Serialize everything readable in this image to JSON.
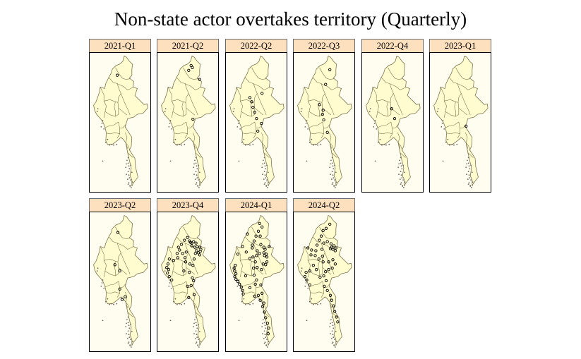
{
  "title": "Non-state actor overtakes territory (Quarterly)",
  "colors": {
    "strip_fill": "#fde0bd",
    "map_fill": "#fffccf",
    "map_border": "#7f7650",
    "islands": "#6f6a60",
    "points": "#000000"
  },
  "panels": [
    {
      "label": "2021-Q1",
      "points": [
        [
          96.2,
          25.8
        ]
      ]
    },
    {
      "label": "2021-Q2",
      "points": [
        [
          97.2,
          27.2
        ],
        [
          97.4,
          26.9
        ],
        [
          96.8,
          26.5
        ],
        [
          98.6,
          25.2
        ],
        [
          97.5,
          19.5
        ]
      ]
    },
    {
      "label": "2022-Q2",
      "points": [
        [
          97.6,
          23.2
        ],
        [
          95.9,
          22.0
        ],
        [
          96.1,
          21.2
        ],
        [
          96.4,
          20.5
        ],
        [
          96.7,
          19.6
        ],
        [
          97.5,
          18.9
        ],
        [
          96.9,
          17.8
        ],
        [
          95.6,
          22.6
        ]
      ]
    },
    {
      "label": "2022-Q3",
      "points": [
        [
          97.6,
          26.6
        ],
        [
          96.9,
          24.5
        ],
        [
          96.5,
          20.8
        ],
        [
          96.4,
          20.2
        ],
        [
          96.6,
          19.4
        ],
        [
          97.2,
          17.6
        ],
        [
          95.9,
          21.6
        ]
      ]
    },
    {
      "label": "2022-Q4",
      "points": [
        [
          96.5,
          21.0
        ],
        [
          97.0,
          19.6
        ]
      ]
    },
    {
      "label": "2023-Q1",
      "points": [
        [
          97.6,
          18.5
        ]
      ]
    },
    {
      "label": "2023-Q2",
      "points": [
        [
          96.3,
          26.1
        ],
        [
          96.6,
          20.6
        ],
        [
          95.8,
          21.5
        ],
        [
          96.6,
          18.0
        ],
        [
          97.5,
          16.9
        ],
        [
          97.0,
          16.5
        ]
      ]
    },
    {
      "label": "2023-Q4",
      "points": [
        [
          96.9,
          24.9
        ],
        [
          97.1,
          24.7
        ],
        [
          97.3,
          24.6
        ],
        [
          97.6,
          24.8
        ],
        [
          98.0,
          24.6
        ],
        [
          97.3,
          24.2
        ],
        [
          97.8,
          24.0
        ],
        [
          98.2,
          24.1
        ],
        [
          98.6,
          24.0
        ],
        [
          98.8,
          23.7
        ],
        [
          98.7,
          23.4
        ],
        [
          98.4,
          23.2
        ],
        [
          98.1,
          23.5
        ],
        [
          97.9,
          23.1
        ],
        [
          98.6,
          22.9
        ],
        [
          96.6,
          25.4
        ],
        [
          96.1,
          25.0
        ],
        [
          95.6,
          24.4
        ],
        [
          95.1,
          24.0
        ],
        [
          95.3,
          23.6
        ],
        [
          94.9,
          23.1
        ],
        [
          95.0,
          22.5
        ],
        [
          94.3,
          22.1
        ],
        [
          93.6,
          22.3
        ],
        [
          93.4,
          21.6
        ],
        [
          93.2,
          21.1
        ],
        [
          93.5,
          20.8
        ],
        [
          93.3,
          20.3
        ],
        [
          93.6,
          19.8
        ],
        [
          94.0,
          19.3
        ],
        [
          96.4,
          23.3
        ],
        [
          95.8,
          23.1
        ],
        [
          96.2,
          22.5
        ],
        [
          97.7,
          22.3
        ],
        [
          96.3,
          21.9
        ],
        [
          97.0,
          21.6
        ],
        [
          97.5,
          21.4
        ],
        [
          96.9,
          20.4
        ],
        [
          96.0,
          20.6
        ],
        [
          97.4,
          19.6
        ],
        [
          97.6,
          19.2
        ],
        [
          97.2,
          18.5
        ],
        [
          96.6,
          18.4
        ],
        [
          97.7,
          17.2
        ],
        [
          96.8,
          16.8
        ]
      ]
    },
    {
      "label": "2024-Q1",
      "points": [
        [
          97.2,
          27.4
        ],
        [
          97.6,
          26.9
        ],
        [
          97.0,
          26.3
        ],
        [
          96.6,
          25.6
        ],
        [
          96.3,
          24.9
        ],
        [
          96.0,
          24.3
        ],
        [
          97.9,
          24.0
        ],
        [
          98.1,
          23.7
        ],
        [
          97.4,
          24.4
        ],
        [
          96.8,
          23.5
        ],
        [
          96.0,
          23.9
        ],
        [
          97.9,
          23.2
        ],
        [
          98.0,
          22.8
        ],
        [
          98.3,
          23.0
        ],
        [
          98.4,
          22.6
        ],
        [
          98.4,
          21.9
        ],
        [
          98.2,
          21.5
        ],
        [
          97.8,
          21.6
        ],
        [
          97.5,
          20.8
        ],
        [
          96.8,
          21.1
        ],
        [
          96.5,
          21.9
        ],
        [
          96.1,
          22.6
        ],
        [
          95.6,
          22.4
        ],
        [
          95.0,
          23.3
        ],
        [
          94.4,
          24.1
        ],
        [
          93.6,
          23.0
        ],
        [
          93.2,
          21.4
        ],
        [
          93.0,
          21.0
        ],
        [
          93.1,
          20.6
        ],
        [
          93.3,
          20.2
        ],
        [
          93.1,
          19.8
        ],
        [
          93.3,
          19.4
        ],
        [
          93.6,
          19.1
        ],
        [
          93.9,
          18.7
        ],
        [
          94.2,
          18.3
        ],
        [
          94.4,
          17.8
        ],
        [
          94.5,
          17.3
        ],
        [
          96.3,
          20.0
        ],
        [
          96.7,
          19.3
        ],
        [
          97.4,
          18.6
        ],
        [
          96.5,
          18.7
        ],
        [
          97.6,
          17.4
        ],
        [
          97.0,
          17.1
        ],
        [
          97.3,
          16.4
        ],
        [
          97.9,
          16.0
        ],
        [
          97.7,
          15.5
        ],
        [
          98.0,
          14.7
        ],
        [
          98.2,
          13.9
        ],
        [
          98.5,
          13.1
        ],
        [
          98.7,
          12.4
        ],
        [
          98.6,
          11.6
        ],
        [
          96.4,
          17.0
        ],
        [
          95.6,
          18.2
        ],
        [
          94.9,
          19.9
        ],
        [
          96.2,
          21.0
        ],
        [
          96.7,
          22.8
        ],
        [
          97.2,
          23.1
        ],
        [
          98.8,
          24.1
        ],
        [
          97.3,
          25.6
        ],
        [
          95.2,
          25.9
        ]
      ]
    },
    {
      "label": "2024-Q2",
      "points": [
        [
          97.6,
          27.3
        ],
        [
          97.0,
          26.7
        ],
        [
          96.5,
          26.4
        ],
        [
          96.2,
          25.6
        ],
        [
          95.9,
          25.0
        ],
        [
          95.5,
          24.3
        ],
        [
          96.6,
          24.6
        ],
        [
          97.2,
          24.8
        ],
        [
          97.8,
          24.5
        ],
        [
          97.9,
          24.0
        ],
        [
          98.1,
          23.7
        ],
        [
          98.3,
          24.2
        ],
        [
          98.6,
          23.9
        ],
        [
          98.5,
          23.5
        ],
        [
          97.7,
          23.8
        ],
        [
          96.3,
          23.7
        ],
        [
          95.3,
          23.5
        ],
        [
          94.6,
          23.6
        ],
        [
          94.0,
          23.9
        ],
        [
          94.5,
          22.9
        ],
        [
          95.2,
          22.8
        ],
        [
          95.8,
          22.3
        ],
        [
          96.4,
          22.7
        ],
        [
          96.5,
          21.9
        ],
        [
          97.4,
          21.9
        ],
        [
          98.1,
          22.2
        ],
        [
          98.5,
          21.6
        ],
        [
          98.0,
          21.0
        ],
        [
          97.4,
          20.8
        ],
        [
          96.9,
          20.5
        ],
        [
          96.6,
          19.9
        ],
        [
          96.0,
          19.7
        ],
        [
          95.4,
          20.8
        ],
        [
          94.9,
          21.4
        ],
        [
          94.3,
          20.6
        ],
        [
          93.7,
          20.4
        ],
        [
          93.5,
          19.8
        ],
        [
          93.8,
          19.3
        ],
        [
          94.3,
          18.6
        ],
        [
          96.7,
          18.4
        ],
        [
          97.2,
          17.8
        ],
        [
          97.7,
          17.1
        ],
        [
          97.9,
          16.4
        ],
        [
          98.2,
          15.6
        ],
        [
          98.4,
          14.8
        ],
        [
          98.7,
          14.0
        ],
        [
          98.9,
          13.3
        ],
        [
          97.0,
          19.2
        ]
      ]
    }
  ]
}
